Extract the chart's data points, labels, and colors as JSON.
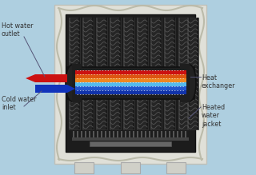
{
  "bg_color": "#aecfe0",
  "labels": {
    "hot_water_outlet": "Hot water\noutlet",
    "cold_water_inlet": "Cold water\ninlet",
    "heat_exchanger": "Heat\nexchanger",
    "heated_water_jacket": "Heated\nwater\njacket"
  },
  "label_color": "#333333",
  "label_fontsize": 5.8,
  "arrow_red_color": "#cc1111",
  "arrow_blue_color": "#1133bb",
  "stripe_colors": [
    "#cc1111",
    "#cc1111",
    "#ee6611",
    "#ee9922",
    "#44aaee",
    "#3366cc",
    "#3355bb"
  ],
  "body_outer_color": "#e8e8e0",
  "body_inner_color": "#1a1a1a",
  "coil_dark": "#222222",
  "coil_mid": "#444444",
  "coil_light": "#666666"
}
